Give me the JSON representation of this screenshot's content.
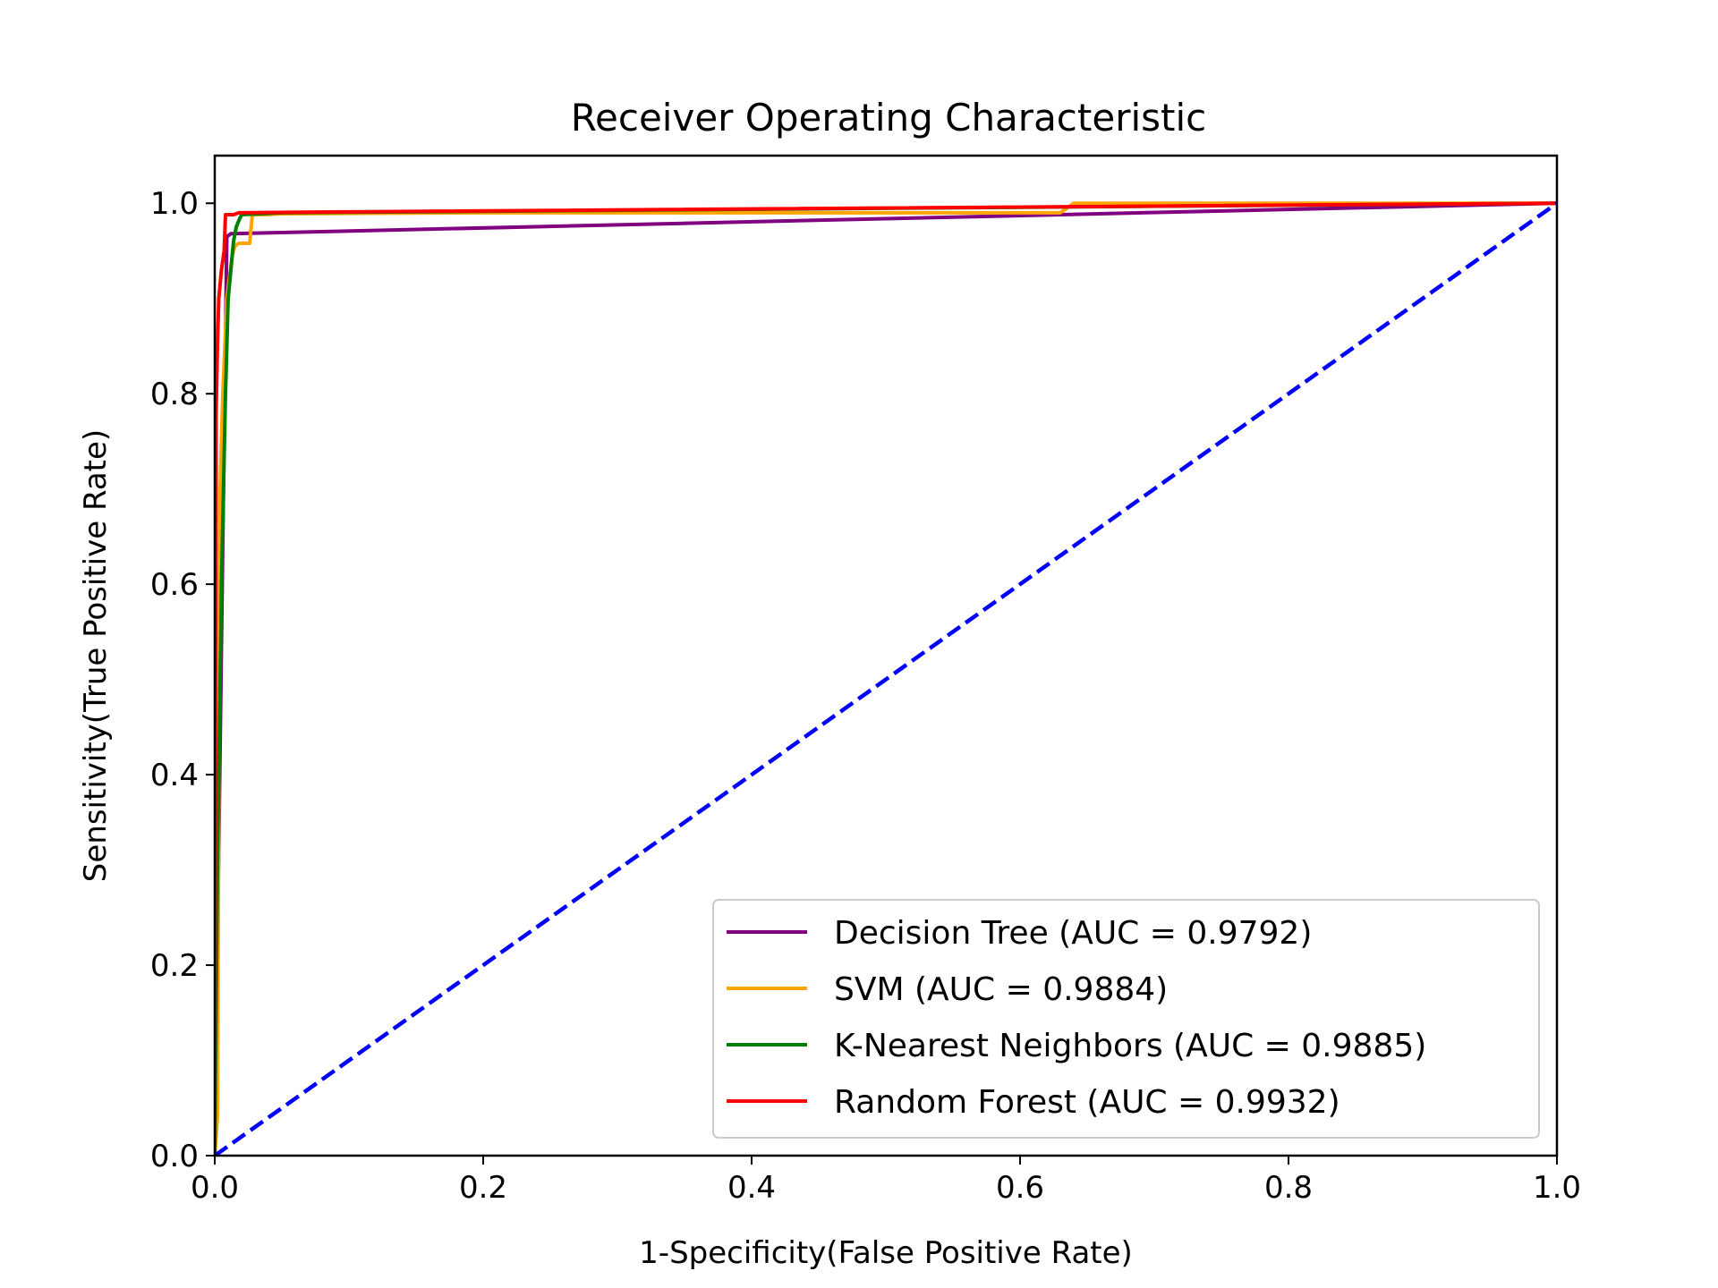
{
  "chart_data": {
    "type": "line",
    "title": "Receiver Operating Characteristic",
    "xlabel": "1-Specificity(False Positive Rate)",
    "ylabel": "Sensitivity(True Positive Rate)",
    "xlim": [
      0.0,
      1.0
    ],
    "ylim": [
      0.0,
      1.05
    ],
    "xticks": [
      "0.0",
      "0.2",
      "0.4",
      "0.6",
      "0.8",
      "1.0"
    ],
    "yticks": [
      "0.0",
      "0.2",
      "0.4",
      "0.6",
      "0.8",
      "1.0"
    ],
    "legend_position": "lower-right",
    "grid": false,
    "series": [
      {
        "name": "Decision Tree (AUC = 0.9792)",
        "color": "#800080",
        "x": [
          0.0,
          0.009,
          0.012,
          1.0
        ],
        "y": [
          0.0,
          0.965,
          0.968,
          1.0
        ]
      },
      {
        "name": "SVM (AUC = 0.9884)",
        "color": "#ffa500",
        "x": [
          0.0,
          0.002,
          0.004,
          0.006,
          0.009,
          0.013,
          0.015,
          0.018,
          0.021,
          0.026,
          0.028,
          0.035,
          0.05,
          0.2,
          0.63,
          0.64,
          1.0
        ],
        "y": [
          0.0,
          0.04,
          0.7,
          0.8,
          0.9,
          0.945,
          0.955,
          0.958,
          0.958,
          0.958,
          0.988,
          0.988,
          0.989,
          0.99,
          0.99,
          1.0,
          1.0
        ]
      },
      {
        "name": "K-Nearest Neighbors (AUC = 0.9885)",
        "color": "#008000",
        "x": [
          0.0,
          0.002,
          0.005,
          0.008,
          0.01,
          0.012,
          0.014,
          0.016,
          0.018,
          0.02,
          0.05,
          1.0
        ],
        "y": [
          0.0,
          0.3,
          0.6,
          0.8,
          0.9,
          0.93,
          0.96,
          0.975,
          0.982,
          0.988,
          0.99,
          1.0
        ]
      },
      {
        "name": "Random Forest (AUC = 0.9932)",
        "color": "#ff0000",
        "x": [
          0.0,
          0.001,
          0.002,
          0.003,
          0.005,
          0.007,
          0.008,
          0.01,
          0.014,
          0.018,
          0.1,
          1.0
        ],
        "y": [
          0.0,
          0.78,
          0.85,
          0.9,
          0.93,
          0.95,
          0.988,
          0.988,
          0.988,
          0.99,
          0.991,
          1.0
        ]
      },
      {
        "name": "",
        "color": "#0000ff",
        "dashed": true,
        "x": [
          0.0,
          1.0
        ],
        "y": [
          0.0,
          1.0
        ]
      }
    ]
  }
}
